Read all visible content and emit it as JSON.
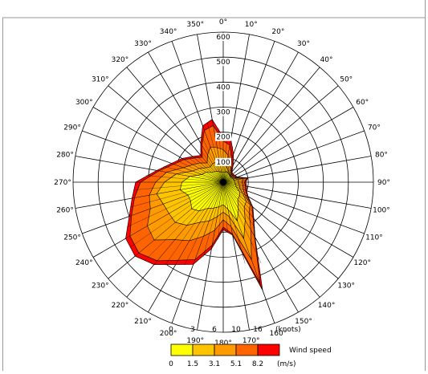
{
  "chart_data": {
    "type": "radar",
    "subtype": "wind-rose",
    "theta_unit": "degrees",
    "direction_labels": [
      "0°",
      "10°",
      "20°",
      "30°",
      "40°",
      "50°",
      "60°",
      "70°",
      "80°",
      "90°",
      "100°",
      "110°",
      "120°",
      "130°",
      "140°",
      "150°",
      "160°",
      "170°",
      "180°",
      "190°",
      "200°",
      "210°",
      "220°",
      "230°",
      "240°",
      "250°",
      "260°",
      "270°",
      "280°",
      "290°",
      "300°",
      "310°",
      "320°",
      "330°",
      "340°",
      "350°"
    ],
    "r_ticks": [
      "100",
      "200",
      "300",
      "400",
      "500",
      "600"
    ],
    "r_max": 600,
    "directions": [
      0,
      10,
      20,
      30,
      40,
      50,
      60,
      70,
      80,
      90,
      100,
      110,
      120,
      130,
      140,
      150,
      160,
      170,
      180,
      190,
      200,
      210,
      220,
      230,
      240,
      250,
      260,
      270,
      280,
      290,
      300,
      310,
      320,
      330,
      340,
      350
    ],
    "series": [
      {
        "color": "#ffff00",
        "values": [
          40,
          40,
          45,
          40,
          38,
          35,
          35,
          40,
          45,
          45,
          50,
          55,
          75,
          85,
          90,
          120,
          165,
          110,
          90,
          100,
          110,
          120,
          150,
          165,
          150,
          150,
          175,
          165,
          135,
          90,
          80,
          60,
          55,
          50,
          45,
          40
        ]
      },
      {
        "color": "#ffc400",
        "values": [
          75,
          65,
          55,
          45,
          40,
          38,
          40,
          45,
          60,
          60,
          65,
          70,
          90,
          120,
          130,
          175,
          240,
          140,
          120,
          140,
          165,
          185,
          225,
          250,
          250,
          255,
          270,
          235,
          190,
          130,
          110,
          90,
          80,
          85,
          85,
          80
        ]
      },
      {
        "color": "#ff9a00",
        "values": [
          130,
          110,
          80,
          60,
          45,
          40,
          45,
          50,
          80,
          75,
          80,
          85,
          100,
          140,
          160,
          220,
          330,
          180,
          150,
          195,
          230,
          270,
          300,
          360,
          350,
          310,
          300,
          270,
          230,
          170,
          140,
          120,
          100,
          125,
          150,
          140
        ]
      },
      {
        "color": "#ff6400",
        "values": [
          165,
          150,
          100,
          70,
          50,
          45,
          50,
          55,
          95,
          85,
          90,
          95,
          110,
          150,
          185,
          250,
          430,
          210,
          180,
          255,
          330,
          360,
          410,
          440,
          430,
          390,
          360,
          330,
          260,
          210,
          180,
          150,
          130,
          170,
          220,
          230
        ]
      },
      {
        "color": "#ff0000",
        "values": [
          180,
          175,
          120,
          80,
          55,
          50,
          55,
          60,
          100,
          90,
          95,
          100,
          115,
          155,
          190,
          255,
          460,
          215,
          190,
          270,
          350,
          380,
          430,
          460,
          450,
          400,
          370,
          350,
          270,
          220,
          190,
          160,
          140,
          180,
          240,
          255
        ]
      }
    ],
    "legend": {
      "title": "Wind speed",
      "knots_unit": "(knots)",
      "knots": [
        "0",
        "3",
        "6",
        "10",
        "16"
      ],
      "ms_unit": "(m/s)",
      "ms": [
        "0",
        "1.5",
        "3.1",
        "5.1",
        "8.2"
      ],
      "colors": [
        "#ffff00",
        "#ffc400",
        "#ff9a00",
        "#ff6400",
        "#ff0000"
      ]
    }
  }
}
